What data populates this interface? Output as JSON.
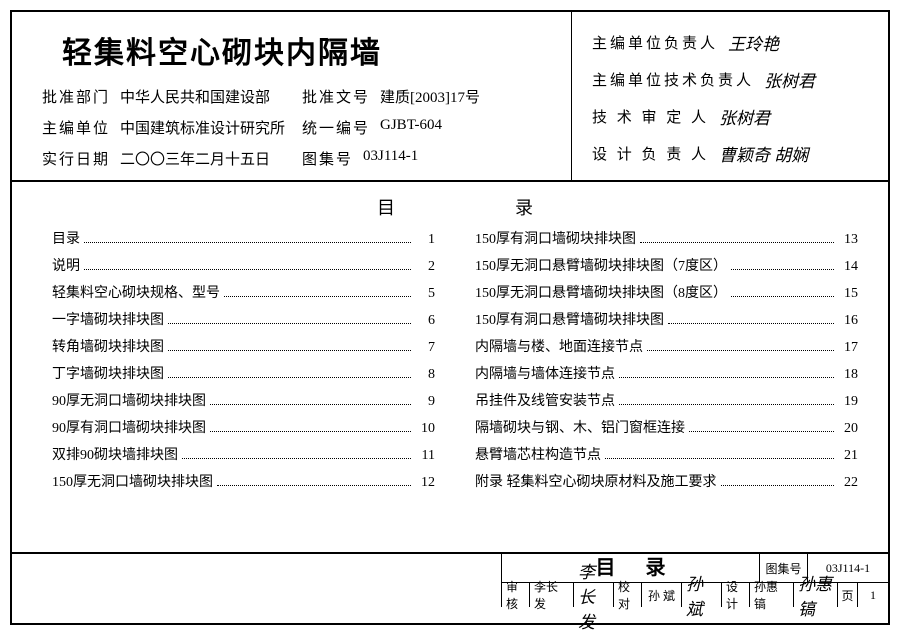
{
  "title": "轻集料空心砌块内隔墙",
  "meta": {
    "approve_dept_label": "批准部门",
    "approve_dept": "中华人民共和国建设部",
    "approve_no_label": "批准文号",
    "approve_no": "建质[2003]17号",
    "editor_org_label": "主编单位",
    "editor_org": "中国建筑标准设计研究所",
    "unified_no_label": "统一编号",
    "unified_no": "GJBT-604",
    "effective_date_label": "实行日期",
    "effective_date": "二〇〇三年二月十五日",
    "atlas_no_label": "图集号",
    "atlas_no": "03J114-1"
  },
  "persons": {
    "org_head_label": "主编单位负责人",
    "org_head": "王玲艳",
    "tech_head_label": "主编单位技术负责人",
    "tech_head": "张树君",
    "reviewer_label": "技 术 审 定 人",
    "reviewer": "张树君",
    "designer_label": "设 计 负 责 人",
    "designer": "曹颖奇 胡娴"
  },
  "toc_header": "目录",
  "toc_left": [
    {
      "label": "目录",
      "page": "1"
    },
    {
      "label": "说明",
      "page": "2"
    },
    {
      "label": "轻集料空心砌块规格、型号",
      "page": "5"
    },
    {
      "label": "一字墙砌块排块图",
      "page": "6"
    },
    {
      "label": "转角墙砌块排块图",
      "page": "7"
    },
    {
      "label": "丁字墙砌块排块图",
      "page": "8"
    },
    {
      "label": "90厚无洞口墙砌块排块图",
      "page": "9"
    },
    {
      "label": "90厚有洞口墙砌块排块图",
      "page": "10"
    },
    {
      "label": "双排90砌块墙排块图",
      "page": "11"
    },
    {
      "label": "150厚无洞口墙砌块排块图",
      "page": "12"
    }
  ],
  "toc_right": [
    {
      "label": "150厚有洞口墙砌块排块图",
      "page": "13"
    },
    {
      "label": "150厚无洞口悬臂墙砌块排块图（7度区）",
      "page": "14"
    },
    {
      "label": "150厚无洞口悬臂墙砌块排块图（8度区）",
      "page": "15"
    },
    {
      "label": "150厚有洞口悬臂墙砌块排块图",
      "page": "16"
    },
    {
      "label": "内隔墙与楼、地面连接节点",
      "page": "17"
    },
    {
      "label": "内隔墙与墙体连接节点",
      "page": "18"
    },
    {
      "label": "吊挂件及线管安装节点",
      "page": "19"
    },
    {
      "label": "隔墙砌块与钢、木、铝门窗框连接",
      "page": "20"
    },
    {
      "label": "悬臂墙芯柱构造节点",
      "page": "21"
    },
    {
      "label": "附录  轻集料空心砌块原材料及施工要求",
      "page": "22"
    }
  ],
  "footer": {
    "toc_title": "目录",
    "atlas_label": "图集号",
    "atlas_val": "03J114-1",
    "check_label": "审核",
    "check_name": "李长发",
    "check_sign": "李长发",
    "proof_label": "校对",
    "proof_name": "孙 斌",
    "proof_sign": "孙斌",
    "design_label": "设计",
    "design_name": "孙惠镐",
    "design_sign": "孙惠镐",
    "page_label": "页",
    "page_no": "1"
  }
}
